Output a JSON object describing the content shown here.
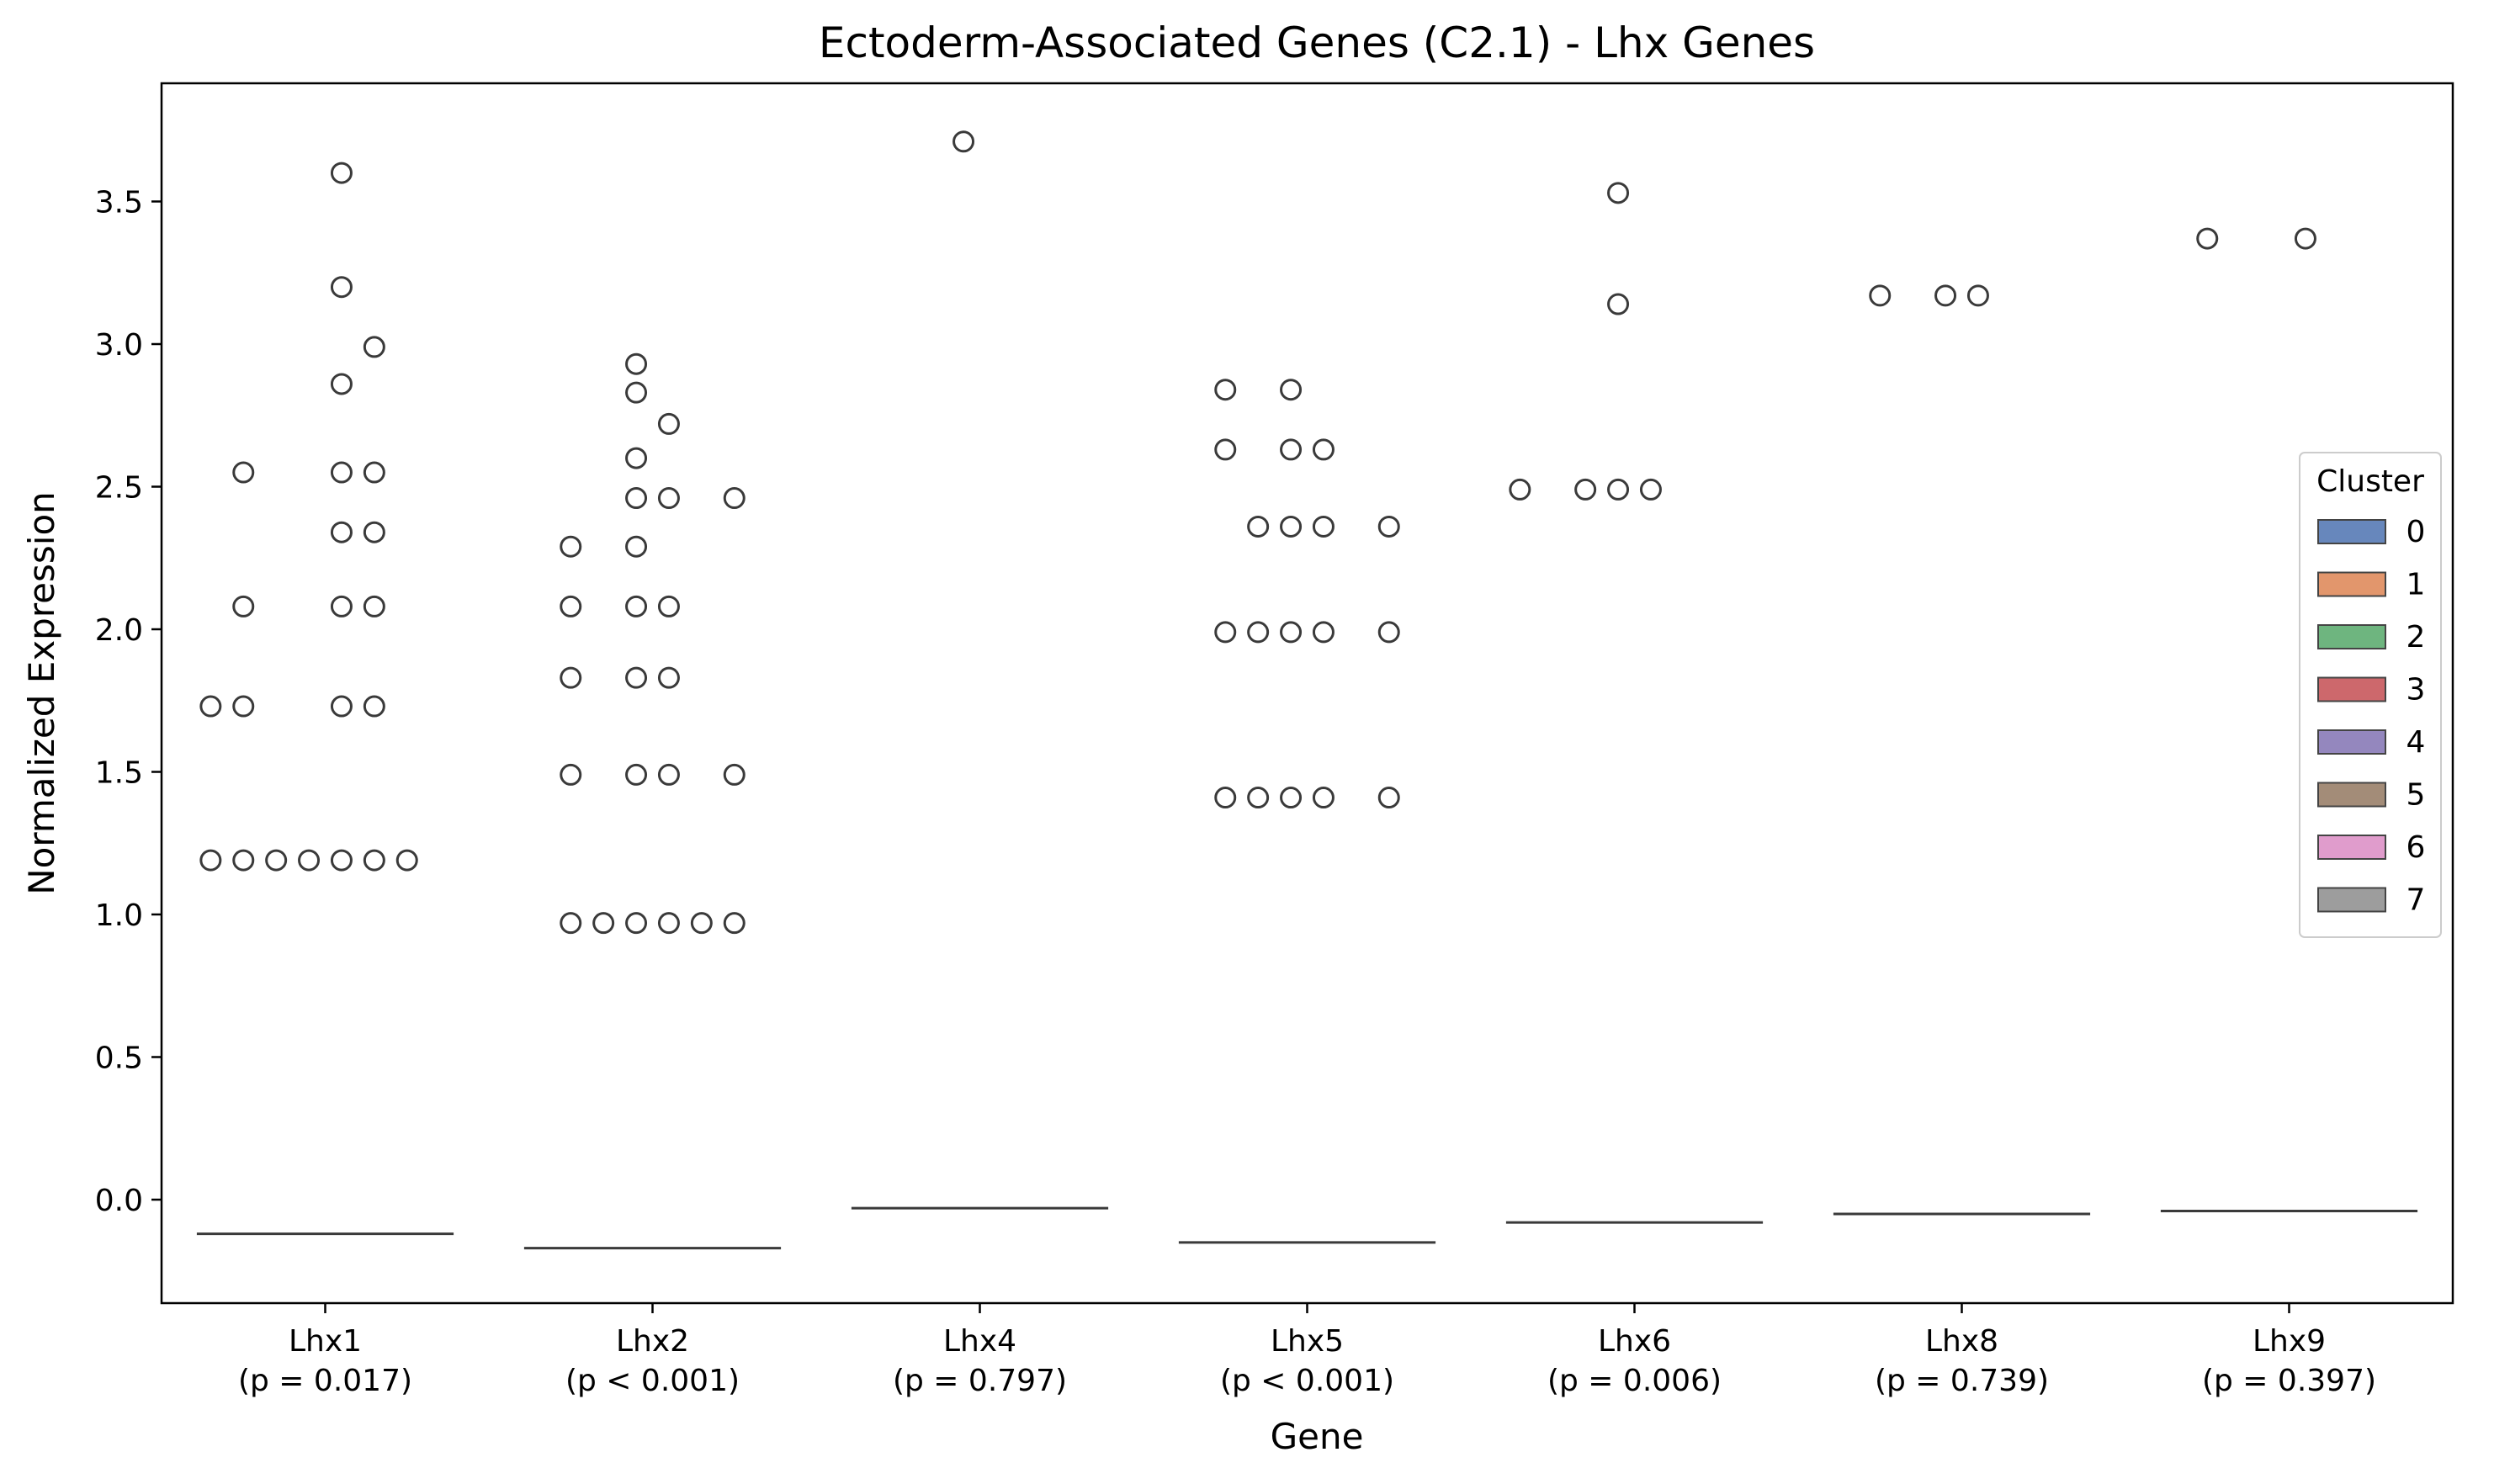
{
  "chart_data": {
    "type": "boxplot",
    "title": "Ectoderm-Associated Genes (C2.1) - Lhx Genes",
    "xlabel": "Gene",
    "ylabel": "Normalized Expression",
    "ylim": [
      -0.36,
      3.9
    ],
    "yticks": [
      0.0,
      0.5,
      1.0,
      1.5,
      2.0,
      2.5,
      3.0,
      3.5
    ],
    "ytick_labels": [
      "0.0",
      "0.5",
      "1.0",
      "1.5",
      "2.0",
      "2.5",
      "3.0",
      "3.5"
    ],
    "grid": false,
    "legend": {
      "title": "Cluster",
      "placement": "center-right",
      "entries": [
        {
          "label": "0",
          "color": "#4c72b0"
        },
        {
          "label": "1",
          "color": "#dd8452"
        },
        {
          "label": "2",
          "color": "#55a868"
        },
        {
          "label": "3",
          "color": "#c44e52"
        },
        {
          "label": "4",
          "color": "#8172b3"
        },
        {
          "label": "5",
          "color": "#937860"
        },
        {
          "label": "6",
          "color": "#da8bc3"
        },
        {
          "label": "7",
          "color": "#8c8c8c"
        }
      ]
    },
    "genes": [
      {
        "name": "Lhx1",
        "pvalue_label": "(p = 0.017)",
        "baseline": -0.12,
        "outliers": [
          {
            "cluster": 0,
            "y": 1.73
          },
          {
            "cluster": 0,
            "y": 1.19
          },
          {
            "cluster": 1,
            "y": 2.55
          },
          {
            "cluster": 1,
            "y": 2.08
          },
          {
            "cluster": 1,
            "y": 1.73
          },
          {
            "cluster": 1,
            "y": 1.19
          },
          {
            "cluster": 2,
            "y": 1.19
          },
          {
            "cluster": 3,
            "y": 1.19
          },
          {
            "cluster": 4,
            "y": 3.6
          },
          {
            "cluster": 4,
            "y": 3.2
          },
          {
            "cluster": 4,
            "y": 2.86
          },
          {
            "cluster": 4,
            "y": 2.55
          },
          {
            "cluster": 4,
            "y": 2.34
          },
          {
            "cluster": 4,
            "y": 2.08
          },
          {
            "cluster": 4,
            "y": 1.73
          },
          {
            "cluster": 4,
            "y": 1.19
          },
          {
            "cluster": 5,
            "y": 2.99
          },
          {
            "cluster": 5,
            "y": 2.55
          },
          {
            "cluster": 5,
            "y": 2.34
          },
          {
            "cluster": 5,
            "y": 2.08
          },
          {
            "cluster": 5,
            "y": 1.73
          },
          {
            "cluster": 5,
            "y": 1.19
          },
          {
            "cluster": 6,
            "y": 1.19
          }
        ]
      },
      {
        "name": "Lhx2",
        "pvalue_label": "(p < 0.001)",
        "baseline": -0.17,
        "outliers": [
          {
            "cluster": 1,
            "y": 2.29
          },
          {
            "cluster": 1,
            "y": 2.08
          },
          {
            "cluster": 1,
            "y": 1.83
          },
          {
            "cluster": 1,
            "y": 1.49
          },
          {
            "cluster": 1,
            "y": 0.97
          },
          {
            "cluster": 2,
            "y": 0.97
          },
          {
            "cluster": 3,
            "y": 2.93
          },
          {
            "cluster": 3,
            "y": 2.83
          },
          {
            "cluster": 3,
            "y": 2.6
          },
          {
            "cluster": 3,
            "y": 2.46
          },
          {
            "cluster": 3,
            "y": 2.29
          },
          {
            "cluster": 3,
            "y": 2.08
          },
          {
            "cluster": 3,
            "y": 1.83
          },
          {
            "cluster": 3,
            "y": 1.49
          },
          {
            "cluster": 3,
            "y": 0.97
          },
          {
            "cluster": 4,
            "y": 2.72
          },
          {
            "cluster": 4,
            "y": 2.46
          },
          {
            "cluster": 4,
            "y": 2.08
          },
          {
            "cluster": 4,
            "y": 1.83
          },
          {
            "cluster": 4,
            "y": 1.49
          },
          {
            "cluster": 4,
            "y": 0.97
          },
          {
            "cluster": 5,
            "y": 0.97
          },
          {
            "cluster": 6,
            "y": 2.46
          },
          {
            "cluster": 6,
            "y": 1.49
          },
          {
            "cluster": 6,
            "y": 0.97
          }
        ]
      },
      {
        "name": "Lhx4",
        "pvalue_label": "(p = 0.797)",
        "baseline": -0.03,
        "outliers": [
          {
            "cluster": 3,
            "y": 3.71
          }
        ]
      },
      {
        "name": "Lhx5",
        "pvalue_label": "(p < 0.001)",
        "baseline": -0.15,
        "outliers": [
          {
            "cluster": 1,
            "y": 2.84
          },
          {
            "cluster": 1,
            "y": 2.63
          },
          {
            "cluster": 1,
            "y": 1.99
          },
          {
            "cluster": 1,
            "y": 1.41
          },
          {
            "cluster": 2,
            "y": 2.36
          },
          {
            "cluster": 2,
            "y": 1.99
          },
          {
            "cluster": 2,
            "y": 1.41
          },
          {
            "cluster": 3,
            "y": 2.84
          },
          {
            "cluster": 3,
            "y": 2.63
          },
          {
            "cluster": 3,
            "y": 2.36
          },
          {
            "cluster": 3,
            "y": 1.99
          },
          {
            "cluster": 3,
            "y": 1.41
          },
          {
            "cluster": 4,
            "y": 2.63
          },
          {
            "cluster": 4,
            "y": 2.36
          },
          {
            "cluster": 4,
            "y": 1.99
          },
          {
            "cluster": 4,
            "y": 1.41
          },
          {
            "cluster": 6,
            "y": 2.36
          },
          {
            "cluster": 6,
            "y": 1.99
          },
          {
            "cluster": 6,
            "y": 1.41
          }
        ]
      },
      {
        "name": "Lhx6",
        "pvalue_label": "(p = 0.006)",
        "baseline": -0.08,
        "outliers": [
          {
            "cluster": 0,
            "y": 2.49
          },
          {
            "cluster": 2,
            "y": 2.49
          },
          {
            "cluster": 3,
            "y": 3.53
          },
          {
            "cluster": 3,
            "y": 3.14
          },
          {
            "cluster": 3,
            "y": 2.49
          },
          {
            "cluster": 4,
            "y": 2.49
          }
        ]
      },
      {
        "name": "Lhx8",
        "pvalue_label": "(p = 0.739)",
        "baseline": -0.05,
        "outliers": [
          {
            "cluster": 1,
            "y": 3.17
          },
          {
            "cluster": 3,
            "y": 3.17
          },
          {
            "cluster": 4,
            "y": 3.17
          }
        ]
      },
      {
        "name": "Lhx9",
        "pvalue_label": "(p = 0.397)",
        "baseline": -0.04,
        "outliers": [
          {
            "cluster": 1,
            "y": 3.37
          },
          {
            "cluster": 4,
            "y": 3.37
          }
        ]
      }
    ]
  }
}
